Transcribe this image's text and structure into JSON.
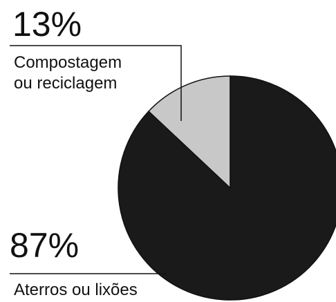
{
  "chart_data": {
    "type": "pie",
    "title": "",
    "slices": [
      {
        "label_lines": [
          "Compostagem",
          "ou reciclagem"
        ],
        "percent_label": "13%",
        "value": 13,
        "color": "#c8c8c8"
      },
      {
        "label_lines": [
          "Aterros ou lixões"
        ],
        "percent_label": "87%",
        "value": 87,
        "color": "#1a1a1a"
      }
    ],
    "start_angle_deg": -90,
    "direction": "counterclockwise",
    "legend": "none"
  }
}
